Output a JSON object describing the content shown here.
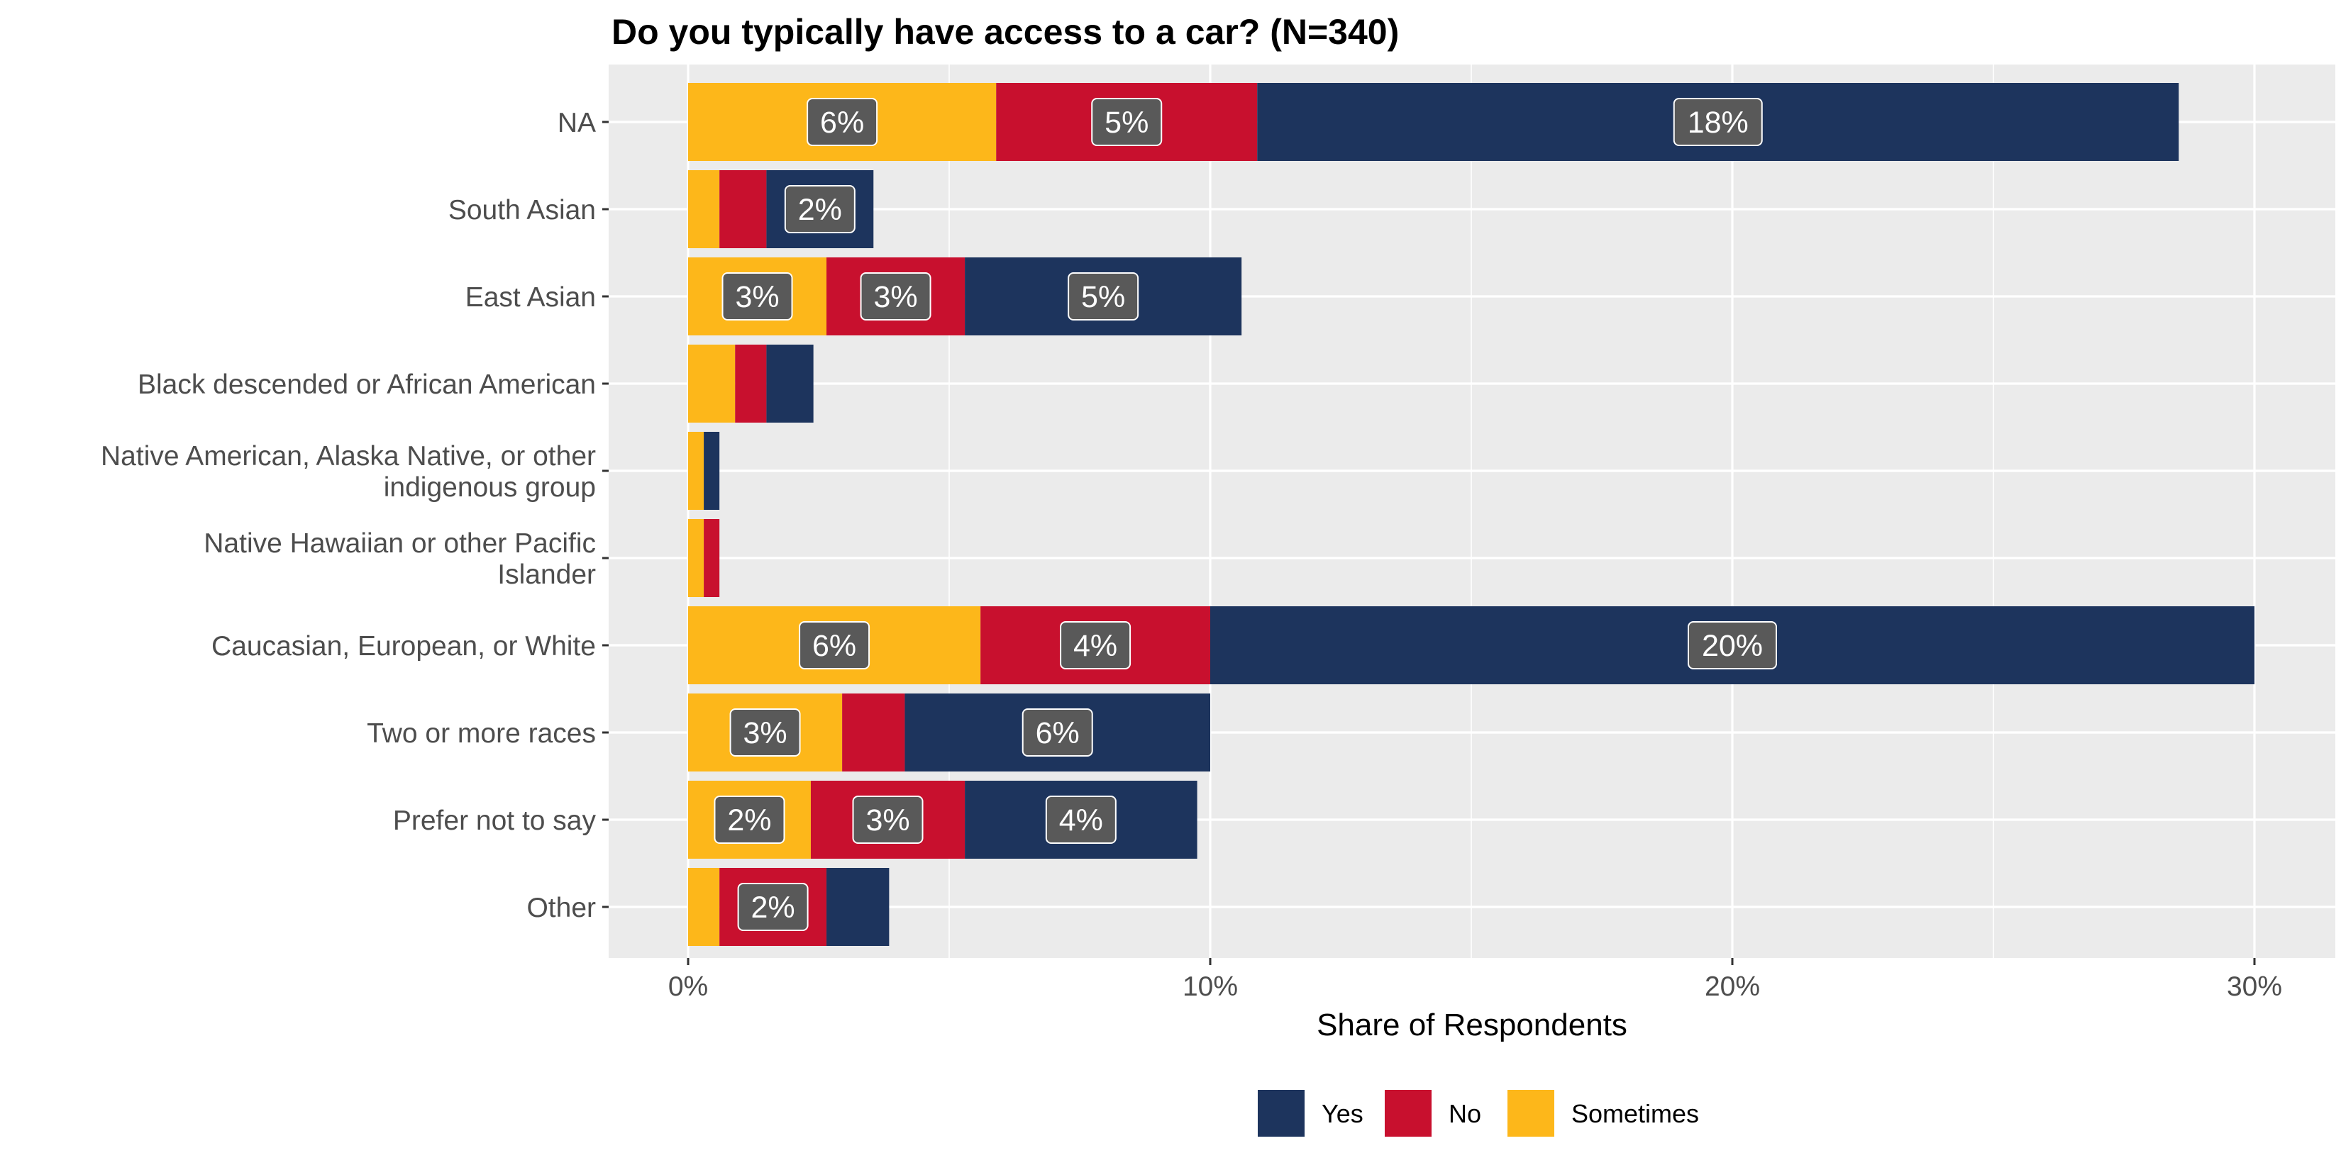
{
  "chart_data": {
    "type": "bar",
    "orientation": "horizontal",
    "stacked": true,
    "title": "Do you typically have access to a car? (N=340)",
    "xlabel": "Share of Respondents",
    "ylabel": "",
    "xlim": [
      0,
      31.5
    ],
    "x_ticks": [
      0,
      10,
      20,
      30
    ],
    "x_tick_labels": [
      "0%",
      "10%",
      "20%",
      "30%"
    ],
    "grid": true,
    "legend_position": "bottom",
    "categories": [
      [
        "NA"
      ],
      [
        "South Asian"
      ],
      [
        "East Asian"
      ],
      [
        "Black descended or African American"
      ],
      [
        "Native American, Alaska Native, or other",
        "indigenous group"
      ],
      [
        "Native Hawaiian or other Pacific",
        "Islander"
      ],
      [
        "Caucasian, European, or White"
      ],
      [
        "Two or more races"
      ],
      [
        "Prefer not to say"
      ],
      [
        "Other"
      ]
    ],
    "series": [
      {
        "name": "Sometimes",
        "color": "#FDB71A",
        "values": [
          5.9,
          0.6,
          2.65,
          0.9,
          0.3,
          0.3,
          5.6,
          2.95,
          2.35,
          0.6
        ],
        "labels": [
          "6%",
          "",
          "3%",
          "",
          "",
          "",
          "6%",
          "3%",
          "2%",
          ""
        ]
      },
      {
        "name": "No",
        "color": "#C8102E",
        "values": [
          5.0,
          0.9,
          2.65,
          0.6,
          0.0,
          0.3,
          4.4,
          1.2,
          2.95,
          2.05
        ],
        "labels": [
          "5%",
          "",
          "3%",
          "",
          "",
          "",
          "4%",
          "",
          "3%",
          "2%"
        ]
      },
      {
        "name": "Yes",
        "color": "#1D345D",
        "values": [
          17.65,
          2.05,
          5.3,
          0.9,
          0.3,
          0.0,
          20.0,
          5.85,
          4.45,
          1.2
        ],
        "labels": [
          "18%",
          "2%",
          "5%",
          "",
          "",
          "",
          "20%",
          "6%",
          "4%",
          ""
        ]
      }
    ],
    "legend_order": [
      "Yes",
      "No",
      "Sometimes"
    ]
  }
}
